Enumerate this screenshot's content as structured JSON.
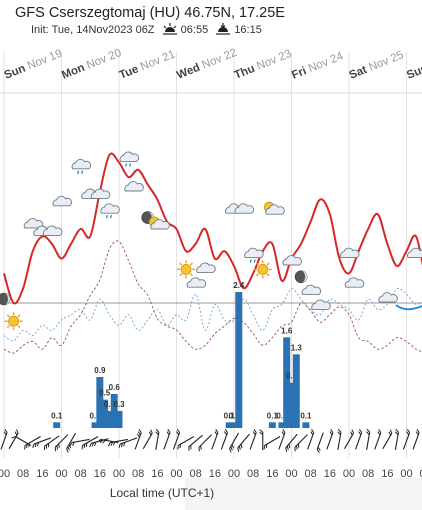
{
  "header": {
    "title": "GFS Cserszegtomaj (HU) 46.75N, 17.25E",
    "init_text": "Init: Tue, 14Nov2023 06Z",
    "sunrise": "06:55",
    "sunset": "16:15",
    "sunrise_icon": "sunrise-icon",
    "sunset_icon": "sunset-icon"
  },
  "chart_data": {
    "type": "line+bar",
    "day_labels": [
      "Sun Nov 19",
      "Mon Nov 20",
      "Tue Nov 21",
      "Wed Nov 22",
      "Thu Nov 23",
      "Fri Nov 24",
      "Sat Nov 25",
      "Sun"
    ],
    "hour_tick_labels": [
      "00",
      "08",
      "16",
      "00",
      "08",
      "16",
      "00",
      "08",
      "16",
      "00",
      "08",
      "16",
      "00",
      "08",
      "16",
      "00",
      "08",
      "16",
      "00",
      "08",
      "16",
      "00",
      "08",
      "16"
    ],
    "xlabel": "Local time (UTC+1)",
    "x_hours": [
      0,
      4,
      8,
      12,
      16,
      20,
      24,
      28,
      32,
      36,
      40,
      44,
      48,
      52,
      56,
      60,
      64,
      68,
      72,
      76,
      80,
      84,
      88,
      92,
      96,
      100,
      104,
      108,
      112,
      116,
      120,
      124,
      128,
      132,
      136,
      140,
      144,
      148,
      152,
      156,
      160,
      164,
      168,
      172,
      176
    ],
    "series": [
      {
        "line": "temperature",
        "color": "#d62728",
        "values": [
          4,
          0,
          2,
          7,
          9,
          8,
          6,
          8,
          10,
          9,
          15,
          20,
          19,
          17,
          18,
          16,
          14,
          11,
          10,
          7,
          8,
          10,
          6,
          7,
          5,
          2,
          4,
          7,
          8,
          3,
          6,
          8,
          11,
          14,
          12,
          6,
          4,
          7,
          10,
          12,
          8,
          5,
          7,
          9,
          3
        ]
      },
      {
        "line": "dew-point",
        "color": "#a05050",
        "values": [
          -12,
          -13,
          -11,
          -10,
          -12,
          -9,
          -11,
          -6,
          -3,
          2,
          6,
          14,
          16,
          11,
          5,
          2,
          -4,
          -6,
          -7,
          -10,
          -12,
          -11,
          -8,
          -6,
          -4,
          -5,
          -8,
          -11,
          -9,
          -6,
          -5,
          0,
          -2,
          -5,
          -3,
          -1,
          -3,
          -9,
          -10,
          -12,
          -11,
          -9,
          -10,
          -12,
          -13
        ]
      },
      {
        "line": "freezing-level",
        "color": "#6ea0d8",
        "values": [
          -15,
          -16,
          -14,
          -15,
          -13,
          -14,
          -12,
          -11,
          -10,
          -12,
          -8,
          -11,
          -13,
          -11,
          -14,
          -12,
          -10,
          -13,
          -11,
          -12,
          -7,
          -14,
          -9,
          -12,
          -12,
          -8,
          -11,
          -14,
          -10,
          -9,
          -6,
          -8,
          -10,
          -11,
          -8,
          -9,
          -10,
          -12,
          -8,
          -10,
          -9,
          -6,
          -7,
          -9,
          -8
        ]
      }
    ],
    "precipitation": {
      "color": "#2b72b3",
      "hours": [
        22,
        38,
        40,
        42,
        44,
        46,
        48,
        94,
        96,
        98,
        112,
        116,
        118,
        120,
        122,
        126
      ],
      "values": [
        0.1,
        0.1,
        0.9,
        0.5,
        0.3,
        0.6,
        0.3,
        0.1,
        0.1,
        2.4,
        0.1,
        0.1,
        1.6,
        0.8,
        1.3,
        0.1
      ],
      "labels": [
        "0.1",
        "0.1",
        "0.9",
        "0.5",
        "0.3",
        "0.6",
        "0.3",
        "0.1",
        "0.1",
        "2.4",
        "0.1",
        "0.1",
        "1.6",
        "0.8",
        "1.3",
        "0.1"
      ]
    },
    "zero_line": 0,
    "ylim": [
      -16,
      22
    ],
    "precip_ylim": [
      0,
      3.0
    ],
    "weather_icons": [
      {
        "hour": 0,
        "temp": 0,
        "icon": "moon-icon"
      },
      {
        "hour": 4,
        "temp": -3,
        "icon": "sun-icon"
      },
      {
        "hour": 12,
        "temp": 10,
        "icon": "cloud-icon"
      },
      {
        "hour": 16,
        "temp": 9,
        "icon": "cloud-icon"
      },
      {
        "hour": 20,
        "temp": 9,
        "icon": "cloud-icon"
      },
      {
        "hour": 24,
        "temp": 13,
        "icon": "cloud-icon"
      },
      {
        "hour": 32,
        "temp": 18,
        "icon": "cloud-rain-icon"
      },
      {
        "hour": 36,
        "temp": 14,
        "icon": "cloud-icon"
      },
      {
        "hour": 40,
        "temp": 14,
        "icon": "cloud-icon"
      },
      {
        "hour": 44,
        "temp": 12,
        "icon": "cloud-rain-icon"
      },
      {
        "hour": 52,
        "temp": 19,
        "icon": "cloud-rain-icon"
      },
      {
        "hour": 54,
        "temp": 15,
        "icon": "cloud-icon"
      },
      {
        "hour": 60,
        "temp": 11,
        "icon": "moon-icon"
      },
      {
        "hour": 64,
        "temp": 10,
        "icon": "sun-cloud-icon"
      },
      {
        "hour": 76,
        "temp": 4,
        "icon": "sun-icon"
      },
      {
        "hour": 80,
        "temp": 2,
        "icon": "cloud-icon"
      },
      {
        "hour": 84,
        "temp": 4,
        "icon": "cloud-icon"
      },
      {
        "hour": 96,
        "temp": 12,
        "icon": "cloud-icon"
      },
      {
        "hour": 100,
        "temp": 12,
        "icon": "cloud-icon"
      },
      {
        "hour": 104,
        "temp": 6,
        "icon": "cloud-rain-icon"
      },
      {
        "hour": 108,
        "temp": 4,
        "icon": "sun-icon"
      },
      {
        "hour": 112,
        "temp": 12,
        "icon": "sun-cloud-icon"
      },
      {
        "hour": 120,
        "temp": 5,
        "icon": "cloud-icon"
      },
      {
        "hour": 124,
        "temp": 3,
        "icon": "moon-icon"
      },
      {
        "hour": 128,
        "temp": 1,
        "icon": "cloud-icon"
      },
      {
        "hour": 132,
        "temp": -1,
        "icon": "cloud-icon"
      },
      {
        "hour": 144,
        "temp": 6,
        "icon": "cloud-icon"
      },
      {
        "hour": 146,
        "temp": 2,
        "icon": "cloud-icon"
      },
      {
        "hour": 160,
        "temp": 0,
        "icon": "cloud-icon"
      },
      {
        "hour": 172,
        "temp": 6,
        "icon": "cloud-icon"
      }
    ],
    "wind_arrows": [
      {
        "hour": 0,
        "dir": 200,
        "speed": 2
      },
      {
        "hour": 4,
        "dir": 210,
        "speed": 2
      },
      {
        "hour": 8,
        "dir": 120,
        "speed": 1
      },
      {
        "hour": 12,
        "dir": 60,
        "speed": 3
      },
      {
        "hour": 16,
        "dir": 70,
        "speed": 3
      },
      {
        "hour": 20,
        "dir": 55,
        "speed": 3
      },
      {
        "hour": 24,
        "dir": 45,
        "speed": 3
      },
      {
        "hour": 28,
        "dir": 30,
        "speed": 3
      },
      {
        "hour": 32,
        "dir": 80,
        "speed": 2
      },
      {
        "hour": 36,
        "dir": 60,
        "speed": 3
      },
      {
        "hour": 40,
        "dir": 75,
        "speed": 3
      },
      {
        "hour": 44,
        "dir": 100,
        "speed": 3
      },
      {
        "hour": 48,
        "dir": 80,
        "speed": 3
      },
      {
        "hour": 52,
        "dir": 70,
        "speed": 3
      },
      {
        "hour": 56,
        "dir": 200,
        "speed": 3
      },
      {
        "hour": 60,
        "dir": 210,
        "speed": 2
      },
      {
        "hour": 64,
        "dir": 190,
        "speed": 2
      },
      {
        "hour": 68,
        "dir": 200,
        "speed": 2
      },
      {
        "hour": 72,
        "dir": 200,
        "speed": 2
      },
      {
        "hour": 76,
        "dir": 60,
        "speed": 2
      },
      {
        "hour": 80,
        "dir": 50,
        "speed": 2
      },
      {
        "hour": 84,
        "dir": 45,
        "speed": 2
      },
      {
        "hour": 88,
        "dir": 200,
        "speed": 2
      },
      {
        "hour": 92,
        "dir": 200,
        "speed": 2
      },
      {
        "hour": 96,
        "dir": 30,
        "speed": 3
      },
      {
        "hour": 100,
        "dir": 40,
        "speed": 3
      },
      {
        "hour": 104,
        "dir": 200,
        "speed": 2
      },
      {
        "hour": 108,
        "dir": 180,
        "speed": 2
      },
      {
        "hour": 112,
        "dir": 60,
        "speed": 2
      },
      {
        "hour": 116,
        "dir": 200,
        "speed": 2
      },
      {
        "hour": 120,
        "dir": 40,
        "speed": 3
      },
      {
        "hour": 124,
        "dir": 45,
        "speed": 3
      },
      {
        "hour": 128,
        "dir": 200,
        "speed": 2
      },
      {
        "hour": 132,
        "dir": 20,
        "speed": 2
      },
      {
        "hour": 136,
        "dir": 200,
        "speed": 2
      },
      {
        "hour": 140,
        "dir": 190,
        "speed": 2
      },
      {
        "hour": 144,
        "dir": 210,
        "speed": 2
      },
      {
        "hour": 148,
        "dir": 200,
        "speed": 2
      },
      {
        "hour": 152,
        "dir": 190,
        "speed": 2
      },
      {
        "hour": 156,
        "dir": 200,
        "speed": 2
      },
      {
        "hour": 160,
        "dir": 210,
        "speed": 2
      },
      {
        "hour": 164,
        "dir": 190,
        "speed": 2
      },
      {
        "hour": 168,
        "dir": 200,
        "speed": 2
      },
      {
        "hour": 172,
        "dir": 200,
        "speed": 2
      }
    ]
  }
}
